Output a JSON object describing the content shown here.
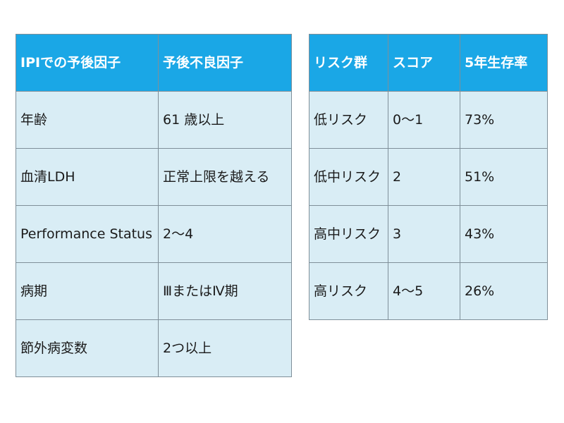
{
  "factors_table": {
    "headers": [
      "IPIでの予後因子",
      "予後不良因子"
    ],
    "rows": [
      [
        "年齢",
        "61 歳以上"
      ],
      [
        "血清LDH",
        "正常上限を越える"
      ],
      [
        "Performance Status",
        "2～4"
      ],
      [
        "病期",
        "ⅢまたはⅣ期"
      ],
      [
        "節外病変数",
        "2つ以上"
      ]
    ]
  },
  "risk_table": {
    "headers": [
      "リスク群",
      "スコア",
      "5年生存率"
    ],
    "rows": [
      [
        "低リスク",
        "0～1",
        "73%"
      ],
      [
        "低中リスク",
        "2",
        "51%"
      ],
      [
        "高中リスク",
        "3",
        "43%"
      ],
      [
        "高リスク",
        "4～5",
        "26%"
      ]
    ]
  },
  "colors": {
    "header_bg": "#1aa7e6",
    "cell_bg": "#d9edf5",
    "border": "#7f8f99"
  }
}
